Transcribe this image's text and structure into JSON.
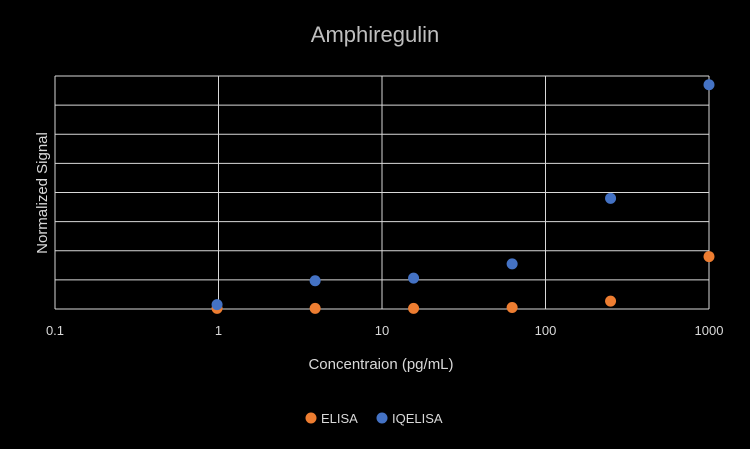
{
  "chart_data": {
    "type": "scatter",
    "title": "Amphiregulin",
    "xlabel": "Concentraion (pg/mL)",
    "ylabel": "Normalized Signal",
    "x_scale": "log",
    "xlim": [
      0.1,
      1000
    ],
    "ylim": [
      0,
      8
    ],
    "x_ticks": [
      0.1,
      1,
      10,
      100,
      1000
    ],
    "x_tick_labels": [
      "0.1",
      "1",
      "10",
      "100",
      "1000"
    ],
    "y_tick_labels_shown": false,
    "grid": true,
    "legend_position": "bottom",
    "series": [
      {
        "name": "ELISA",
        "color": "#ed7d31",
        "points": [
          {
            "x": 0.98,
            "y": 0.02
          },
          {
            "x": 3.9,
            "y": 0.02
          },
          {
            "x": 15.6,
            "y": 0.02
          },
          {
            "x": 62.5,
            "y": 0.05
          },
          {
            "x": 250,
            "y": 0.27
          },
          {
            "x": 1000,
            "y": 1.8
          }
        ]
      },
      {
        "name": "IQELISA",
        "color": "#4472c4",
        "points": [
          {
            "x": 0.98,
            "y": 0.15
          },
          {
            "x": 3.9,
            "y": 0.97
          },
          {
            "x": 15.6,
            "y": 1.06
          },
          {
            "x": 62.5,
            "y": 1.55
          },
          {
            "x": 250,
            "y": 3.8
          },
          {
            "x": 1000,
            "y": 7.7
          }
        ]
      }
    ]
  }
}
